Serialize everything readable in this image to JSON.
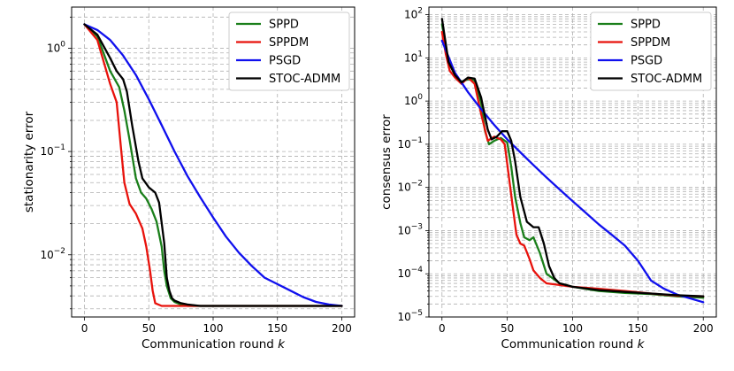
{
  "chart_data": [
    {
      "type": "line",
      "xlabel": "Communication round k",
      "ylabel": "stationarity error",
      "yscale": "log",
      "xlim": [
        -10,
        210
      ],
      "ylim": [
        0.0025,
        2.5
      ],
      "xticks": [
        0,
        50,
        100,
        150,
        200
      ],
      "xtick_labels": [
        "0",
        "50",
        "100",
        "150",
        "200"
      ],
      "yticks": [
        1,
        0.1,
        0.01
      ],
      "ytick_labels": [
        "10^0",
        "10^-1",
        "10^-2"
      ],
      "grid": true,
      "legend": "top-right",
      "series": [
        {
          "name": "SPPD",
          "color": "#1a7f1a",
          "x": [
            0,
            10,
            20,
            27,
            31,
            35,
            40,
            44,
            48,
            52,
            56,
            60,
            62,
            64,
            67,
            70,
            75,
            80,
            200
          ],
          "y": [
            1.7,
            1.3,
            0.6,
            0.42,
            0.25,
            0.13,
            0.055,
            0.04,
            0.035,
            0.028,
            0.021,
            0.012,
            0.007,
            0.005,
            0.0038,
            0.0035,
            0.0033,
            0.0032,
            0.0032
          ]
        },
        {
          "name": "SPPDM",
          "color": "#e8120c",
          "x": [
            0,
            10,
            20,
            25,
            28,
            31,
            35,
            40,
            45,
            48,
            51,
            53,
            55,
            60,
            70,
            200
          ],
          "y": [
            1.7,
            1.2,
            0.45,
            0.3,
            0.12,
            0.05,
            0.031,
            0.025,
            0.018,
            0.012,
            0.007,
            0.0045,
            0.0034,
            0.0032,
            0.0032,
            0.0032
          ]
        },
        {
          "name": "PSGD",
          "color": "#1010ee",
          "x": [
            0,
            10,
            20,
            30,
            40,
            50,
            60,
            70,
            80,
            90,
            100,
            110,
            120,
            130,
            140,
            150,
            160,
            170,
            180,
            190,
            200
          ],
          "y": [
            1.7,
            1.5,
            1.2,
            0.85,
            0.55,
            0.32,
            0.18,
            0.1,
            0.058,
            0.036,
            0.023,
            0.015,
            0.0105,
            0.0078,
            0.006,
            0.0052,
            0.0045,
            0.0039,
            0.0035,
            0.0033,
            0.0032
          ]
        },
        {
          "name": "STOC-ADMM",
          "color": "#000000",
          "x": [
            0,
            10,
            20,
            25,
            30,
            33,
            37,
            42,
            45,
            50,
            55,
            58,
            62,
            64,
            66,
            68,
            70,
            75,
            80,
            90,
            200
          ],
          "y": [
            1.7,
            1.35,
            0.8,
            0.6,
            0.5,
            0.38,
            0.18,
            0.08,
            0.055,
            0.045,
            0.04,
            0.032,
            0.013,
            0.006,
            0.0045,
            0.0038,
            0.0036,
            0.0034,
            0.0033,
            0.0032,
            0.0032
          ]
        }
      ]
    },
    {
      "type": "line",
      "xlabel": "Communication round k",
      "ylabel": "consensus error",
      "yscale": "log",
      "xlim": [
        -10,
        210
      ],
      "ylim": [
        1e-05,
        150
      ],
      "xticks": [
        0,
        50,
        100,
        150,
        200
      ],
      "xtick_labels": [
        "0",
        "50",
        "100",
        "150",
        "200"
      ],
      "yticks": [
        100,
        10,
        1,
        0.1,
        0.01,
        0.001,
        0.0001,
        1e-05
      ],
      "ytick_labels": [
        "10^2",
        "10^1",
        "10^0",
        "10^-1",
        "10^-2",
        "10^-3",
        "10^-4",
        "10^-5"
      ],
      "grid": true,
      "legend": "top-right",
      "series": [
        {
          "name": "SPPD",
          "color": "#1a7f1a",
          "x": [
            0,
            5,
            10,
            15,
            20,
            25,
            30,
            33,
            36,
            40,
            45,
            50,
            53,
            56,
            60,
            63,
            67,
            70,
            75,
            80,
            90,
            100,
            120,
            140,
            160,
            180,
            200
          ],
          "y": [
            60,
            8,
            4,
            2.8,
            3.2,
            3.0,
            0.9,
            0.2,
            0.1,
            0.12,
            0.14,
            0.11,
            0.03,
            0.006,
            0.0015,
            0.0007,
            0.0006,
            0.0007,
            0.0003,
            0.0001,
            6e-05,
            5e-05,
            4e-05,
            3.6e-05,
            3.4e-05,
            3e-05,
            2.8e-05
          ]
        },
        {
          "name": "SPPDM",
          "color": "#e8120c",
          "x": [
            0,
            3,
            6,
            10,
            15,
            20,
            25,
            30,
            35,
            40,
            45,
            48,
            51,
            54,
            57,
            60,
            63,
            67,
            70,
            75,
            80,
            90,
            100,
            120,
            140,
            160,
            180,
            200
          ],
          "y": [
            40,
            12,
            5,
            3.5,
            2.5,
            3.5,
            2.5,
            0.5,
            0.12,
            0.15,
            0.13,
            0.1,
            0.02,
            0.004,
            0.0008,
            0.0005,
            0.00045,
            0.00022,
            0.00012,
            8e-05,
            6e-05,
            5.5e-05,
            5e-05,
            4.5e-05,
            4e-05,
            3.5e-05,
            3.1e-05,
            3e-05
          ]
        },
        {
          "name": "PSGD",
          "color": "#1010ee",
          "x": [
            0,
            10,
            20,
            30,
            40,
            50,
            60,
            70,
            80,
            90,
            100,
            110,
            120,
            130,
            140,
            150,
            160,
            170,
            180,
            190,
            200
          ],
          "y": [
            25,
            4.5,
            1.6,
            0.65,
            0.28,
            0.13,
            0.065,
            0.033,
            0.017,
            0.009,
            0.0048,
            0.0026,
            0.0014,
            0.0008,
            0.00045,
            0.0002,
            7e-05,
            4.5e-05,
            3.3e-05,
            2.7e-05,
            2.2e-05
          ]
        },
        {
          "name": "STOC-ADMM",
          "color": "#000000",
          "x": [
            0,
            5,
            10,
            15,
            20,
            25,
            30,
            35,
            38,
            42,
            46,
            50,
            53,
            56,
            60,
            65,
            70,
            74,
            78,
            82,
            86,
            90,
            100,
            120,
            140,
            160,
            180,
            200
          ],
          "y": [
            80,
            8,
            4,
            2.7,
            3.5,
            3.3,
            1.2,
            0.22,
            0.13,
            0.15,
            0.2,
            0.2,
            0.12,
            0.04,
            0.006,
            0.0016,
            0.0012,
            0.0012,
            0.0005,
            0.00015,
            8e-05,
            6e-05,
            5e-05,
            4.2e-05,
            3.8e-05,
            3.5e-05,
            3.2e-05,
            3e-05
          ]
        }
      ]
    }
  ]
}
